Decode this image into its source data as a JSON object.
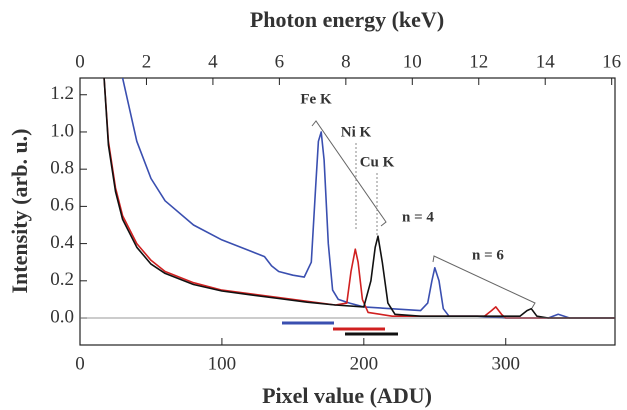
{
  "chart_data": {
    "type": "line",
    "x_label": "Pixel value (ADU)",
    "x2_label": "Photon energy (keV)",
    "y_label": "Intensity (arb. u.)",
    "xlim": [
      0,
      377
    ],
    "xticks": [
      0,
      100,
      200,
      300
    ],
    "x2lim": [
      0,
      16.1
    ],
    "x2ticks": [
      0,
      2,
      4,
      6,
      8,
      10,
      12,
      14,
      16
    ],
    "ylim": [
      -0.145,
      1.29
    ],
    "yticks": [
      {
        "value": 0,
        "label": "0.0"
      },
      0.2,
      0.4,
      0.6,
      0.8,
      {
        "value": 1,
        "label": "1.0"
      },
      1.2
    ],
    "hline": 0,
    "annotations": [
      "Fe K",
      "Ni K",
      "Cu K",
      "n = 4",
      "n = 6"
    ],
    "series": [
      {
        "color": "#3a4fb0",
        "x": [
          30,
          40,
          50,
          60,
          80,
          100,
          120,
          130,
          135,
          140,
          150,
          158,
          163,
          166,
          168,
          170,
          172,
          175,
          178,
          182,
          190,
          200,
          240,
          245,
          248,
          250,
          253,
          256,
          260,
          280,
          300,
          330,
          337,
          345,
          377
        ],
        "values": [
          1.29,
          0.95,
          0.75,
          0.63,
          0.5,
          0.42,
          0.36,
          0.33,
          0.28,
          0.25,
          0.23,
          0.22,
          0.3,
          0.7,
          0.95,
          1.0,
          0.85,
          0.4,
          0.15,
          0.1,
          0.08,
          0.06,
          0.04,
          0.08,
          0.2,
          0.27,
          0.2,
          0.05,
          0.01,
          0.01,
          0.0,
          0.0,
          0.02,
          0.0,
          0.0
        ]
      },
      {
        "color": "#d02020",
        "x": [
          17,
          20,
          25,
          30,
          40,
          50,
          60,
          80,
          100,
          120,
          140,
          160,
          180,
          188,
          191,
          194,
          196,
          199,
          203,
          220,
          285,
          290,
          293,
          297,
          300,
          377
        ],
        "values": [
          1.29,
          0.95,
          0.7,
          0.55,
          0.4,
          0.31,
          0.25,
          0.19,
          0.15,
          0.13,
          0.11,
          0.09,
          0.07,
          0.08,
          0.25,
          0.37,
          0.3,
          0.1,
          0.03,
          0.01,
          0.01,
          0.04,
          0.06,
          0.02,
          0.0,
          0.0
        ]
      },
      {
        "color": "#111111",
        "x": [
          17,
          20,
          25,
          30,
          40,
          50,
          60,
          80,
          100,
          120,
          140,
          160,
          180,
          200,
          205,
          208,
          210,
          213,
          217,
          222,
          240,
          310,
          315,
          318,
          322,
          330,
          377
        ],
        "values": [
          1.29,
          0.93,
          0.68,
          0.53,
          0.38,
          0.29,
          0.24,
          0.18,
          0.145,
          0.125,
          0.105,
          0.085,
          0.07,
          0.06,
          0.2,
          0.38,
          0.44,
          0.3,
          0.08,
          0.02,
          0.01,
          0.01,
          0.04,
          0.05,
          0.01,
          0.0,
          0.0
        ]
      }
    ]
  }
}
